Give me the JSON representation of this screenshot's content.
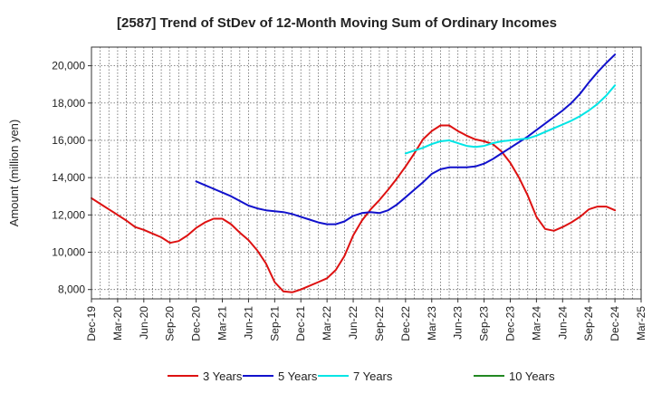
{
  "chart_data": {
    "type": "line",
    "title": "[2587]  Trend of StDev of 12-Month Moving Sum of Ordinary Incomes",
    "xlabel": "",
    "ylabel": "Amount (million yen)",
    "ylim": [
      7500,
      21000
    ],
    "y_ticks": [
      8000,
      10000,
      12000,
      14000,
      16000,
      18000,
      20000
    ],
    "y_tick_labels": [
      "8,000",
      "10,000",
      "12,000",
      "14,000",
      "16,000",
      "18,000",
      "20,000"
    ],
    "x_ticks": [
      "Dec-19",
      "Mar-20",
      "Jun-20",
      "Sep-20",
      "Dec-20",
      "Mar-21",
      "Jun-21",
      "Sep-21",
      "Dec-21",
      "Mar-22",
      "Jun-22",
      "Sep-22",
      "Dec-22",
      "Mar-23",
      "Jun-23",
      "Sep-23",
      "Dec-23",
      "Mar-24",
      "Jun-24",
      "Sep-24",
      "Dec-24",
      "Mar-25"
    ],
    "grid": true,
    "legend_position": "bottom",
    "series": [
      {
        "name": "3 Years",
        "color": "#dd1111",
        "start_month_index": 0,
        "values": [
          12900,
          12600,
          12300,
          12000,
          11700,
          11350,
          11200,
          11000,
          10800,
          10500,
          10600,
          10900,
          11300,
          11600,
          11800,
          11800,
          11500,
          11050,
          10650,
          10100,
          9400,
          8400,
          7900,
          7850,
          8000,
          8200,
          8400,
          8600,
          9050,
          9800,
          10900,
          11700,
          12300,
          12800,
          13350,
          13950,
          14600,
          15300,
          16050,
          16500,
          16800,
          16800,
          16500,
          16250,
          16050,
          15950,
          15800,
          15400,
          14800,
          14000,
          13050,
          11900,
          11250,
          11150,
          11350,
          11600,
          11900,
          12300,
          12450,
          12450,
          12250
        ]
      },
      {
        "name": "5 Years",
        "color": "#1111cc",
        "start_month_index": 12,
        "values": [
          13800,
          13600,
          13400,
          13200,
          13000,
          12750,
          12500,
          12350,
          12250,
          12200,
          12150,
          12050,
          11900,
          11750,
          11600,
          11500,
          11500,
          11650,
          11950,
          12100,
          12150,
          12100,
          12250,
          12550,
          12950,
          13350,
          13750,
          14200,
          14450,
          14550,
          14550,
          14550,
          14600,
          14750,
          15000,
          15300,
          15600,
          15900,
          16200,
          16550,
          16900,
          17250,
          17600,
          18000,
          18500,
          19100,
          19650,
          20150,
          20600
        ]
      },
      {
        "name": "7 Years",
        "color": "#00e5e5",
        "start_month_index": 36,
        "values": [
          15300,
          15450,
          15600,
          15800,
          15950,
          16000,
          15850,
          15700,
          15650,
          15700,
          15850,
          15950,
          16000,
          16050,
          16100,
          16250,
          16450,
          16650,
          16850,
          17050,
          17300,
          17600,
          17950,
          18400,
          18950
        ]
      },
      {
        "name": "10 Years",
        "color": "#228822",
        "start_month_index": 0,
        "values": []
      }
    ]
  }
}
